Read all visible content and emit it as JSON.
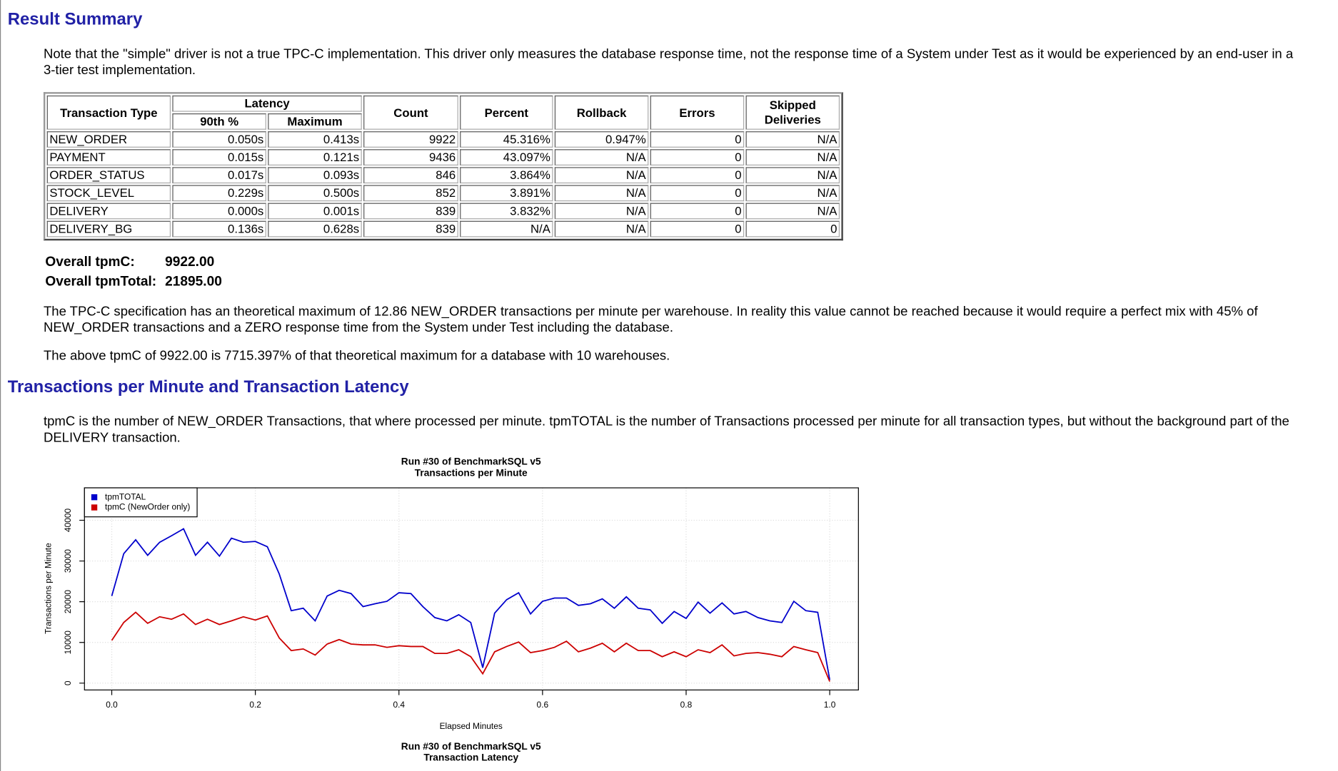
{
  "sections": [
    {
      "title": "Result Summary"
    },
    {
      "title": "Transactions per Minute and Transaction Latency"
    }
  ],
  "paragraphs": [
    "Note that the \"simple\" driver is not a true TPC-C implementation. This driver only measures the database response time, not the response time of a System under Test as it would be experienced by an end-user in a 3-tier test implementation.",
    "The TPC-C specification has an theoretical maximum of 12.86 NEW_ORDER transactions per minute per warehouse. In reality this value cannot be reached because it would require a perfect mix with 45% of NEW_ORDER transactions and a ZERO response time from the System under Test including the database.",
    "The above tpmC of 9922.00 is 7715.397% of that theoretical maximum for a database with 10 warehouses.",
    "tpmC is the number of NEW_ORDER Transactions, that where processed per minute. tpmTOTAL is the number of Transactions processed per minute for all transaction types, but without the background part of the DELIVERY transaction."
  ],
  "table": {
    "header": {
      "type": "Transaction Type",
      "latency": "Latency",
      "p90": "90th %",
      "max": "Maximum",
      "count": "Count",
      "percent": "Percent",
      "rollback": "Rollback",
      "errors": "Errors",
      "skipped": "Skipped Deliveries"
    },
    "rows": [
      [
        "NEW_ORDER",
        "0.050s",
        "0.413s",
        "9922",
        "45.316%",
        "0.947%",
        "0",
        "N/A"
      ],
      [
        "PAYMENT",
        "0.015s",
        "0.121s",
        "9436",
        "43.097%",
        "N/A",
        "0",
        "N/A"
      ],
      [
        "ORDER_STATUS",
        "0.017s",
        "0.093s",
        "846",
        "3.864%",
        "N/A",
        "0",
        "N/A"
      ],
      [
        "STOCK_LEVEL",
        "0.229s",
        "0.500s",
        "852",
        "3.891%",
        "N/A",
        "0",
        "N/A"
      ],
      [
        "DELIVERY",
        "0.000s",
        "0.001s",
        "839",
        "3.832%",
        "N/A",
        "0",
        "N/A"
      ],
      [
        "DELIVERY_BG",
        "0.136s",
        "0.628s",
        "839",
        "N/A",
        "N/A",
        "0",
        "0"
      ]
    ]
  },
  "overall": [
    {
      "label": "Overall tpmC:",
      "value": "9922.00"
    },
    {
      "label": "Overall tpmTotal:",
      "value": "21895.00"
    }
  ],
  "next_chart": {
    "title": "Run #30 of BenchmarkSQL v5",
    "subtitle": "Transaction Latency"
  },
  "chart_data": {
    "type": "line",
    "title": "Run #30 of BenchmarkSQL v5",
    "subtitle": "Transactions per Minute",
    "x_label": "Elapsed Minutes",
    "y_label": "Transactions per Minute",
    "x": [
      0,
      0.0167,
      0.0333,
      0.05,
      0.0667,
      0.0833,
      0.1,
      0.1167,
      0.1333,
      0.15,
      0.1667,
      0.1833,
      0.2,
      0.2167,
      0.2333,
      0.25,
      0.2667,
      0.2833,
      0.3,
      0.3167,
      0.3333,
      0.35,
      0.3667,
      0.3833,
      0.4,
      0.4167,
      0.4333,
      0.45,
      0.4667,
      0.4833,
      0.5,
      0.5167,
      0.5333,
      0.55,
      0.5667,
      0.5833,
      0.6,
      0.6167,
      0.6333,
      0.65,
      0.6667,
      0.6833,
      0.7,
      0.7167,
      0.7333,
      0.75,
      0.7667,
      0.7833,
      0.8,
      0.8167,
      0.8333,
      0.85,
      0.8667,
      0.8833,
      0.9,
      0.9167,
      0.9333,
      0.95,
      0.9667,
      0.9833,
      1
    ],
    "series": [
      {
        "name": "tpmTOTAL",
        "color": "#0000cc",
        "values": [
          21400,
          31800,
          35200,
          31400,
          34600,
          36200,
          37900,
          31400,
          34600,
          31200,
          35600,
          34600,
          34800,
          33500,
          26800,
          17800,
          18400,
          15300,
          21400,
          22800,
          22000,
          18800,
          19500,
          20100,
          22200,
          22000,
          18800,
          16100,
          15300,
          16800,
          14900,
          3800,
          17200,
          20500,
          22200,
          17000,
          20100,
          20900,
          20900,
          19100,
          19500,
          20700,
          18400,
          21200,
          18400,
          18000,
          14700,
          17600,
          15900,
          19900,
          17200,
          19700,
          17000,
          17600,
          16100,
          15300,
          14900,
          20100,
          17800,
          17400,
          800
        ]
      },
      {
        "name": "tpmC (NewOrder only)",
        "color": "#cc0000",
        "values": [
          10500,
          14900,
          17400,
          14700,
          16300,
          15700,
          17000,
          14400,
          15700,
          14400,
          15300,
          16300,
          15500,
          16500,
          11100,
          8000,
          8400,
          6900,
          9600,
          10700,
          9600,
          9400,
          9400,
          8800,
          9200,
          9000,
          9000,
          7300,
          7300,
          8200,
          6500,
          2300,
          7700,
          9000,
          10100,
          7500,
          8000,
          8800,
          10300,
          7700,
          8600,
          9800,
          7700,
          9800,
          8000,
          8000,
          6500,
          7700,
          6500,
          8200,
          7500,
          9400,
          6700,
          7300,
          7500,
          7100,
          6500,
          9000,
          8200,
          7500,
          400
        ]
      }
    ],
    "xlim": [
      -0.038,
      1.04
    ],
    "ylim": [
      -1675,
      47960
    ],
    "xticks": [
      {
        "value": 0,
        "label": "0.0"
      },
      0.2,
      0.4,
      0.6,
      0.8,
      {
        "value": 1,
        "label": "1.0"
      }
    ],
    "yticks": [
      0,
      10000,
      20000,
      30000,
      40000
    ],
    "grid": true,
    "legend": "top-left"
  }
}
